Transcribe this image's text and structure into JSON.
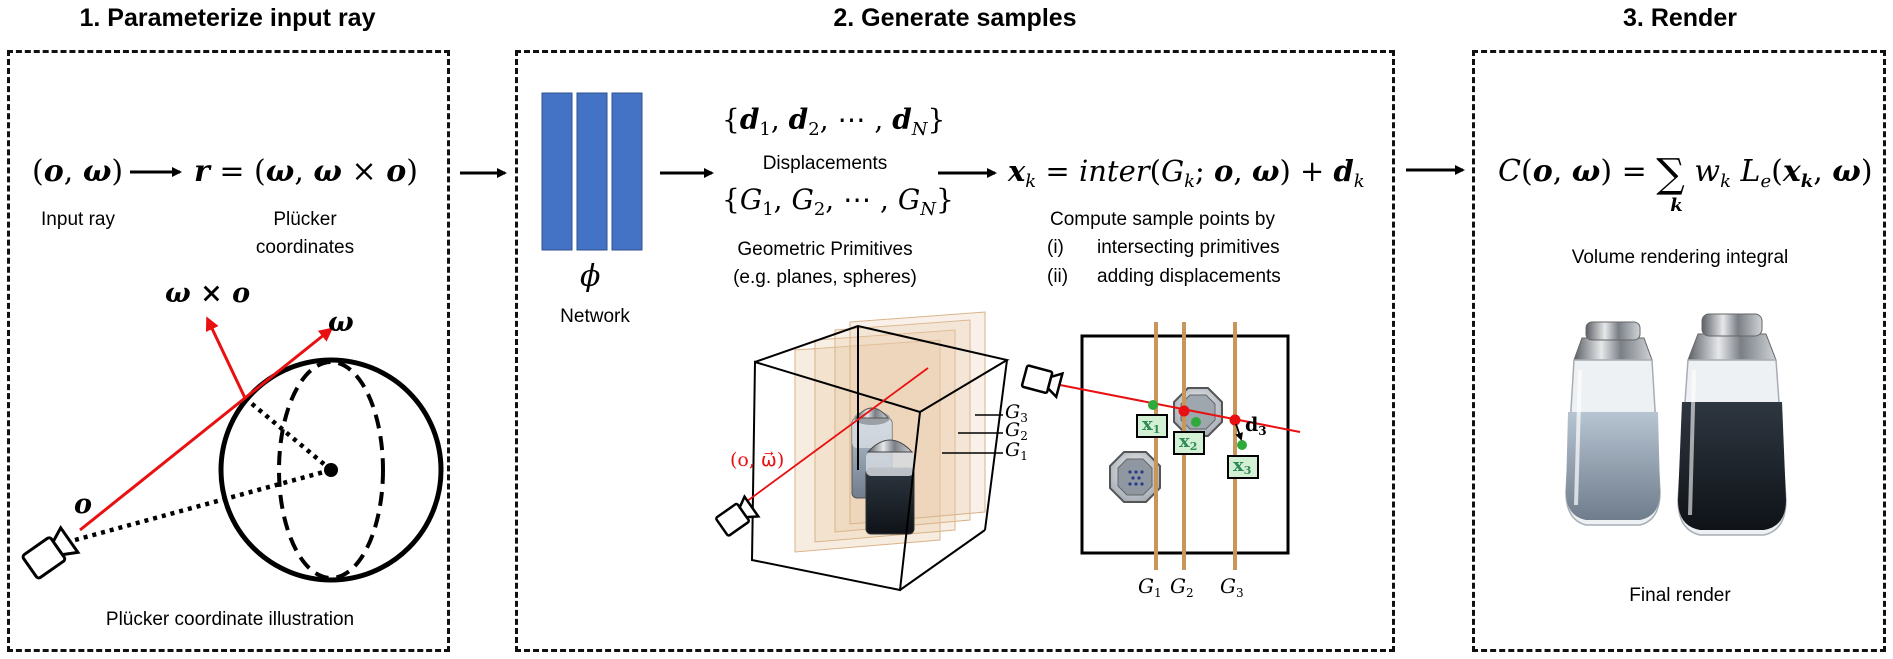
{
  "panels": [
    {
      "title": "1. Parameterize input ray"
    },
    {
      "title": "2. Generate samples"
    },
    {
      "title": "3. Render"
    }
  ],
  "panel1": {
    "input_ray_label": "Input ray",
    "plucker_label_line1": "Plücker",
    "plucker_label_line2": "coordinates",
    "illustration_caption": "Plücker coordinate illustration",
    "cross_symbol": "ω × o",
    "omega_symbol": "ω",
    "origin_symbol": "o"
  },
  "panel2": {
    "network_symbol": "ϕ",
    "network_label": "Network",
    "displacements_label": "Displacements",
    "primitives_label_line1": "Geometric Primitives",
    "primitives_label_line2": "(e.g. planes, spheres)",
    "compute_line": "Compute sample points by",
    "step_i_num": "(i)",
    "step_i_text": "intersecting primitives",
    "step_ii_num": "(ii)",
    "step_ii_text": "adding displacements",
    "ray_label": "(o, ω⃗)",
    "g1": "G",
    "g2": "G",
    "g3": "G",
    "x1": "x",
    "x2": "x",
    "x3": "x",
    "d3": "d"
  },
  "panel3": {
    "integral_caption": "Volume rendering integral",
    "final_caption": "Final render"
  },
  "colors": {
    "network_blue": "#4472c4",
    "ray_red": "#e81010",
    "primitive_tan": "#c8955a",
    "sample_green": "#2eaa3c",
    "label_box_green": "#d4f0d4"
  }
}
